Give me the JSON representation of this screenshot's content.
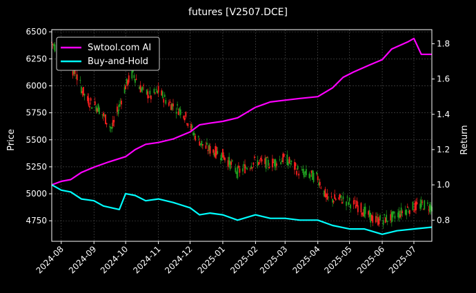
{
  "chart_data": {
    "type": "line",
    "title": "futures [V2507.DCE]",
    "ylabel_left": "Price",
    "ylabel_right": "Return",
    "ylim_left": [
      4560,
      6520
    ],
    "ylim_right": [
      0.68,
      1.88
    ],
    "yticks_left": [
      4750,
      5000,
      5250,
      5500,
      5750,
      6000,
      6250,
      6500
    ],
    "yticks_right": [
      0.8,
      1.0,
      1.2,
      1.4,
      1.6,
      1.8
    ],
    "x_start": "2024-07-23",
    "x_end": "2025-07-18",
    "x_tick_labels": [
      "2024-08",
      "2024-09",
      "2024-10",
      "2024-11",
      "2024-12",
      "2025-01",
      "2025-02",
      "2025-03",
      "2025-04",
      "2025-05",
      "2025-06",
      "2025-07"
    ],
    "x_tick_dates": [
      "2024-08-01",
      "2024-09-01",
      "2024-10-01",
      "2024-11-01",
      "2024-12-01",
      "2025-01-01",
      "2025-02-01",
      "2025-03-01",
      "2025-04-01",
      "2025-05-01",
      "2025-06-01",
      "2025-07-01"
    ],
    "grid": true,
    "legend_position": "top-left",
    "series": [
      {
        "name": "Swtool.com AI",
        "axis": "right",
        "color": "#ff00ff",
        "points": [
          [
            "2024-07-23",
            1.0
          ],
          [
            "2024-08-01",
            1.02
          ],
          [
            "2024-08-10",
            1.03
          ],
          [
            "2024-08-20",
            1.07
          ],
          [
            "2024-09-01",
            1.1
          ],
          [
            "2024-09-15",
            1.13
          ],
          [
            "2024-10-01",
            1.16
          ],
          [
            "2024-10-10",
            1.2
          ],
          [
            "2024-10-20",
            1.23
          ],
          [
            "2024-11-01",
            1.24
          ],
          [
            "2024-11-15",
            1.26
          ],
          [
            "2024-12-01",
            1.3
          ],
          [
            "2024-12-10",
            1.34
          ],
          [
            "2024-12-20",
            1.35
          ],
          [
            "2025-01-01",
            1.36
          ],
          [
            "2025-01-15",
            1.38
          ],
          [
            "2025-02-01",
            1.44
          ],
          [
            "2025-02-15",
            1.47
          ],
          [
            "2025-03-01",
            1.48
          ],
          [
            "2025-03-15",
            1.49
          ],
          [
            "2025-04-01",
            1.5
          ],
          [
            "2025-04-15",
            1.55
          ],
          [
            "2025-04-25",
            1.61
          ],
          [
            "2025-05-05",
            1.64
          ],
          [
            "2025-05-20",
            1.68
          ],
          [
            "2025-06-01",
            1.71
          ],
          [
            "2025-06-10",
            1.77
          ],
          [
            "2025-06-25",
            1.81
          ],
          [
            "2025-07-01",
            1.83
          ],
          [
            "2025-07-08",
            1.74
          ],
          [
            "2025-07-18",
            1.74
          ]
        ]
      },
      {
        "name": "Buy-and-Hold",
        "axis": "right",
        "color": "#00ffff",
        "points": [
          [
            "2024-07-23",
            1.0
          ],
          [
            "2024-08-01",
            0.97
          ],
          [
            "2024-08-10",
            0.96
          ],
          [
            "2024-08-20",
            0.92
          ],
          [
            "2024-09-01",
            0.91
          ],
          [
            "2024-09-10",
            0.88
          ],
          [
            "2024-09-25",
            0.86
          ],
          [
            "2024-10-01",
            0.95
          ],
          [
            "2024-10-10",
            0.94
          ],
          [
            "2024-10-20",
            0.91
          ],
          [
            "2024-11-01",
            0.92
          ],
          [
            "2024-11-15",
            0.9
          ],
          [
            "2024-12-01",
            0.87
          ],
          [
            "2024-12-10",
            0.83
          ],
          [
            "2024-12-20",
            0.84
          ],
          [
            "2025-01-01",
            0.83
          ],
          [
            "2025-01-15",
            0.8
          ],
          [
            "2025-02-01",
            0.83
          ],
          [
            "2025-02-15",
            0.81
          ],
          [
            "2025-03-01",
            0.81
          ],
          [
            "2025-03-15",
            0.8
          ],
          [
            "2025-04-01",
            0.8
          ],
          [
            "2025-04-15",
            0.77
          ],
          [
            "2025-05-01",
            0.75
          ],
          [
            "2025-05-15",
            0.75
          ],
          [
            "2025-06-01",
            0.72
          ],
          [
            "2025-06-15",
            0.74
          ],
          [
            "2025-07-01",
            0.75
          ],
          [
            "2025-07-18",
            0.76
          ]
        ]
      }
    ],
    "candles": {
      "axis": "left",
      "up_color": "#ff2020",
      "down_color": "#20a020",
      "trend": [
        [
          "2024-07-23",
          6400
        ],
        [
          "2024-08-05",
          6250
        ],
        [
          "2024-08-15",
          6100
        ],
        [
          "2024-08-25",
          5870
        ],
        [
          "2024-09-05",
          5800
        ],
        [
          "2024-09-18",
          5600
        ],
        [
          "2024-10-01",
          6000
        ],
        [
          "2024-10-08",
          6120
        ],
        [
          "2024-10-15",
          5980
        ],
        [
          "2024-10-25",
          5900
        ],
        [
          "2024-11-01",
          5950
        ],
        [
          "2024-11-10",
          5850
        ],
        [
          "2024-11-25",
          5750
        ],
        [
          "2024-12-05",
          5550
        ],
        [
          "2024-12-15",
          5430
        ],
        [
          "2025-01-01",
          5360
        ],
        [
          "2025-01-15",
          5200
        ],
        [
          "2025-02-01",
          5300
        ],
        [
          "2025-02-15",
          5280
        ],
        [
          "2025-03-01",
          5330
        ],
        [
          "2025-03-15",
          5200
        ],
        [
          "2025-04-01",
          5150
        ],
        [
          "2025-04-10",
          4950
        ],
        [
          "2025-04-25",
          4950
        ],
        [
          "2025-05-10",
          4880
        ],
        [
          "2025-05-25",
          4750
        ],
        [
          "2025-06-10",
          4780
        ],
        [
          "2025-06-25",
          4860
        ],
        [
          "2025-07-10",
          4900
        ],
        [
          "2025-07-18",
          4880
        ]
      ]
    }
  }
}
